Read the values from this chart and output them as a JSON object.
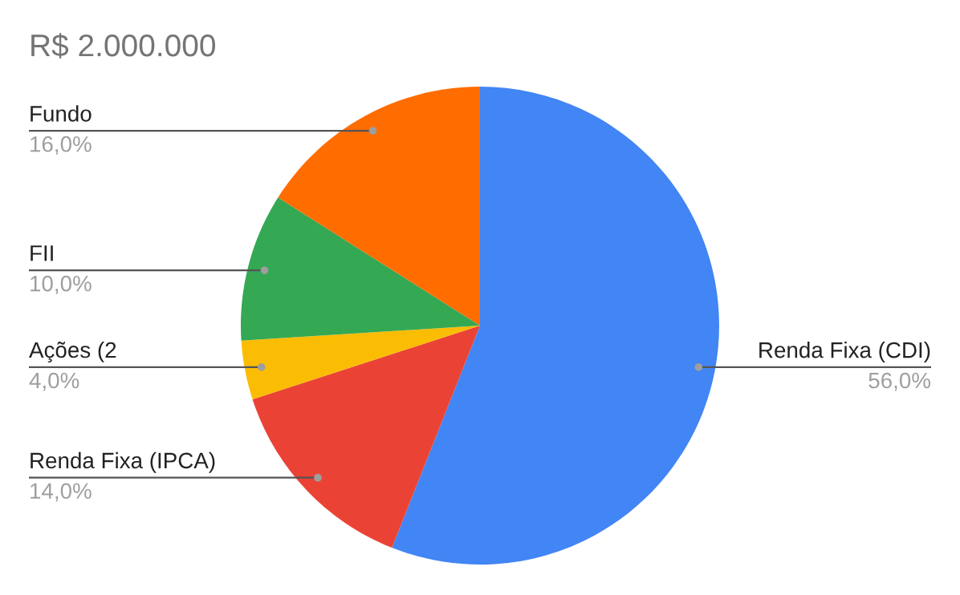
{
  "chart_data": {
    "type": "pie",
    "title": "R$ 2.000.000",
    "categories": [
      "Renda Fixa (CDI)",
      "Renda Fixa (IPCA)",
      "Ações (2",
      "FII",
      "Fundo"
    ],
    "values": [
      56,
      14,
      4,
      10,
      16
    ],
    "colors": [
      "#4285f4",
      "#ea4335",
      "#fbbc04",
      "#34a853",
      "#ff6d01"
    ],
    "value_labels": [
      "56,0%",
      "14,0%",
      "4,0%",
      "10,0%",
      "16,0%"
    ]
  }
}
